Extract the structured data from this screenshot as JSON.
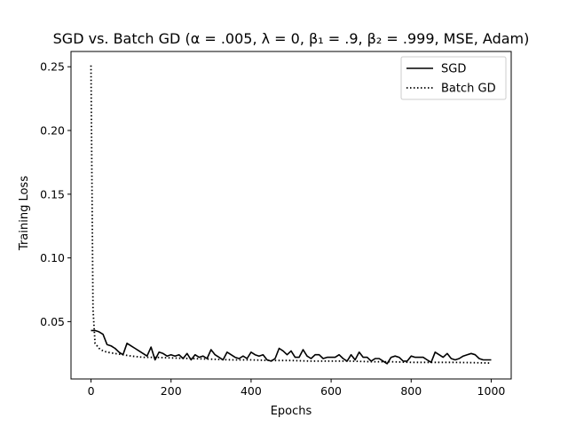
{
  "chart_data": {
    "type": "line",
    "title": "SGD vs. Batch GD (α = .005, λ = 0, β₁ = .9, β₂ = .999, MSE, Adam)",
    "xlabel": "Epochs",
    "ylabel": "Training Loss",
    "xlim": [
      -50,
      1050
    ],
    "ylim": [
      0.005,
      0.262
    ],
    "xticks": [
      0,
      200,
      400,
      600,
      800,
      1000
    ],
    "xtick_labels": [
      "0",
      "200",
      "400",
      "600",
      "800",
      "1000"
    ],
    "yticks": [
      0.05,
      0.1,
      0.15,
      0.2,
      0.25
    ],
    "ytick_labels": [
      "0.05",
      "0.10",
      "0.15",
      "0.20",
      "0.25"
    ],
    "grid": false,
    "legend_position": "top-right",
    "series": [
      {
        "name": "SGD",
        "style": "solid",
        "color": "#000000",
        "x": [
          0,
          10,
          20,
          30,
          40,
          50,
          60,
          70,
          80,
          90,
          100,
          110,
          120,
          130,
          140,
          150,
          160,
          170,
          180,
          190,
          200,
          210,
          220,
          230,
          240,
          250,
          260,
          270,
          280,
          290,
          300,
          310,
          320,
          330,
          340,
          350,
          360,
          370,
          380,
          390,
          400,
          410,
          420,
          430,
          440,
          450,
          460,
          470,
          480,
          490,
          500,
          510,
          520,
          530,
          540,
          550,
          560,
          570,
          580,
          590,
          600,
          610,
          620,
          630,
          640,
          650,
          660,
          670,
          680,
          690,
          700,
          710,
          720,
          730,
          740,
          750,
          760,
          770,
          780,
          790,
          800,
          810,
          820,
          830,
          840,
          850,
          860,
          870,
          880,
          890,
          900,
          910,
          920,
          930,
          940,
          950,
          960,
          970,
          980,
          990,
          1000
        ],
        "y": [
          0.043,
          0.043,
          0.042,
          0.04,
          0.032,
          0.031,
          0.029,
          0.026,
          0.024,
          0.033,
          0.031,
          0.029,
          0.027,
          0.025,
          0.023,
          0.03,
          0.02,
          0.026,
          0.025,
          0.023,
          0.024,
          0.023,
          0.024,
          0.021,
          0.025,
          0.02,
          0.024,
          0.022,
          0.023,
          0.021,
          0.028,
          0.024,
          0.022,
          0.02,
          0.026,
          0.024,
          0.022,
          0.021,
          0.023,
          0.021,
          0.026,
          0.024,
          0.023,
          0.024,
          0.02,
          0.019,
          0.021,
          0.029,
          0.027,
          0.024,
          0.027,
          0.022,
          0.022,
          0.028,
          0.023,
          0.021,
          0.024,
          0.024,
          0.021,
          0.022,
          0.022,
          0.022,
          0.024,
          0.021,
          0.019,
          0.024,
          0.02,
          0.026,
          0.022,
          0.022,
          0.019,
          0.021,
          0.021,
          0.019,
          0.017,
          0.022,
          0.023,
          0.022,
          0.019,
          0.019,
          0.023,
          0.022,
          0.022,
          0.022,
          0.02,
          0.018,
          0.026,
          0.024,
          0.022,
          0.025,
          0.021,
          0.02,
          0.021,
          0.023,
          0.024,
          0.025,
          0.024,
          0.021,
          0.02,
          0.02,
          0.02
        ]
      },
      {
        "name": "Batch GD",
        "style": "dotted",
        "color": "#000000",
        "x": [
          0,
          5,
          10,
          20,
          30,
          40,
          60,
          80,
          100,
          130,
          160,
          200,
          250,
          300,
          350,
          400,
          450,
          500,
          550,
          600,
          650,
          700,
          750,
          800,
          850,
          900,
          950,
          1000
        ],
        "y": [
          0.251,
          0.06,
          0.033,
          0.029,
          0.027,
          0.026,
          0.025,
          0.024,
          0.023,
          0.022,
          0.022,
          0.0215,
          0.021,
          0.0205,
          0.02,
          0.02,
          0.0195,
          0.0195,
          0.019,
          0.019,
          0.019,
          0.0185,
          0.0185,
          0.018,
          0.018,
          0.018,
          0.0178,
          0.0175
        ]
      }
    ]
  }
}
